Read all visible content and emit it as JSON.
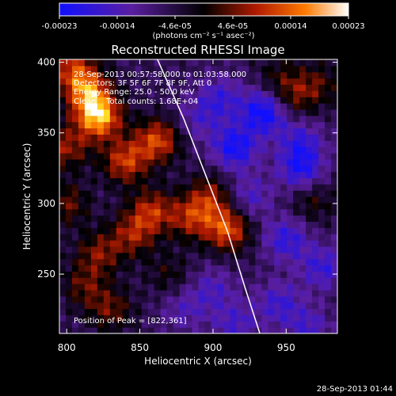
{
  "chart_data": {
    "type": "heatmap",
    "title": "Reconstructed RHESSI Image",
    "xlabel": "Heliocentric X (arcsec)",
    "ylabel": "Heliocentric Y (arcsec)",
    "xlim": [
      795,
      985
    ],
    "ylim": [
      208,
      402
    ],
    "xticks": [
      800,
      850,
      900,
      950
    ],
    "yticks": [
      250,
      300,
      350,
      400
    ],
    "colorbar": {
      "label": "(photons cm⁻² s⁻¹ asec⁻²)",
      "ticks": [
        "-0.00023",
        "-0.00014",
        "-4.6e-05",
        "4.6e-05",
        "0.00014",
        "0.00023"
      ],
      "vmin": -0.00023,
      "vmax": 0.00023,
      "colors": [
        "#1010ff",
        "#5a1ea0",
        "#000000",
        "#b01a00",
        "#ff7a00",
        "#ffffff"
      ]
    },
    "annotations": [
      "28-Sep-2013 00:57:58.000 to 01:03:58.000",
      "Detectors: 3F 5F 6F 7F 8F 9F, Att 0",
      "Energy Range: 25.0 - 50.0 keV",
      "Clean    Total counts: 1.68E+04"
    ],
    "peak_label": "Position of Peak = [822,361]",
    "limb_curve": [
      [
        862,
        402
      ],
      [
        880,
        360
      ],
      [
        895,
        320
      ],
      [
        910,
        280
      ],
      [
        922,
        240
      ],
      [
        932,
        208
      ]
    ],
    "blobs": [
      {
        "x": 822,
        "y": 361,
        "v": 0.00023
      },
      {
        "x": 815,
        "y": 378,
        "v": 0.00018
      },
      {
        "x": 840,
        "y": 330,
        "v": 0.00016
      },
      {
        "x": 862,
        "y": 345,
        "v": 0.00017
      },
      {
        "x": 800,
        "y": 340,
        "v": 0.00012
      },
      {
        "x": 805,
        "y": 395,
        "v": 0.00015
      },
      {
        "x": 858,
        "y": 295,
        "v": 0.00014
      },
      {
        "x": 885,
        "y": 290,
        "v": 0.00013
      },
      {
        "x": 910,
        "y": 282,
        "v": 0.00018
      },
      {
        "x": 898,
        "y": 305,
        "v": 0.00012
      },
      {
        "x": 822,
        "y": 265,
        "v": 0.00011
      },
      {
        "x": 845,
        "y": 278,
        "v": 0.00012
      },
      {
        "x": 800,
        "y": 300,
        "v": 0.0001
      },
      {
        "x": 830,
        "y": 225,
        "v": 0.0001
      },
      {
        "x": 812,
        "y": 242,
        "v": 9e-05
      },
      {
        "x": 870,
        "y": 250,
        "v": 6e-05
      },
      {
        "x": 955,
        "y": 375,
        "v": 9e-05
      },
      {
        "x": 972,
        "y": 385,
        "v": 8e-05
      },
      {
        "x": 968,
        "y": 302,
        "v": 7e-05
      },
      {
        "x": 945,
        "y": 390,
        "v": 6e-05
      },
      {
        "x": 935,
        "y": 365,
        "v": -0.00018
      },
      {
        "x": 915,
        "y": 340,
        "v": -0.00016
      },
      {
        "x": 960,
        "y": 325,
        "v": -0.00014
      },
      {
        "x": 950,
        "y": 275,
        "v": -0.00012
      },
      {
        "x": 975,
        "y": 255,
        "v": -0.00011
      },
      {
        "x": 945,
        "y": 230,
        "v": -0.0001
      },
      {
        "x": 965,
        "y": 212,
        "v": -9e-05
      },
      {
        "x": 905,
        "y": 375,
        "v": -0.0001
      },
      {
        "x": 890,
        "y": 360,
        "v": -7e-05
      },
      {
        "x": 925,
        "y": 305,
        "v": -9e-05
      },
      {
        "x": 900,
        "y": 240,
        "v": -8e-05
      },
      {
        "x": 915,
        "y": 215,
        "v": -9e-05
      },
      {
        "x": 880,
        "y": 225,
        "v": -7e-05
      },
      {
        "x": 960,
        "y": 345,
        "v": -0.0001
      }
    ]
  },
  "footer": {
    "timestamp": "28-Sep-2013 01:44"
  }
}
